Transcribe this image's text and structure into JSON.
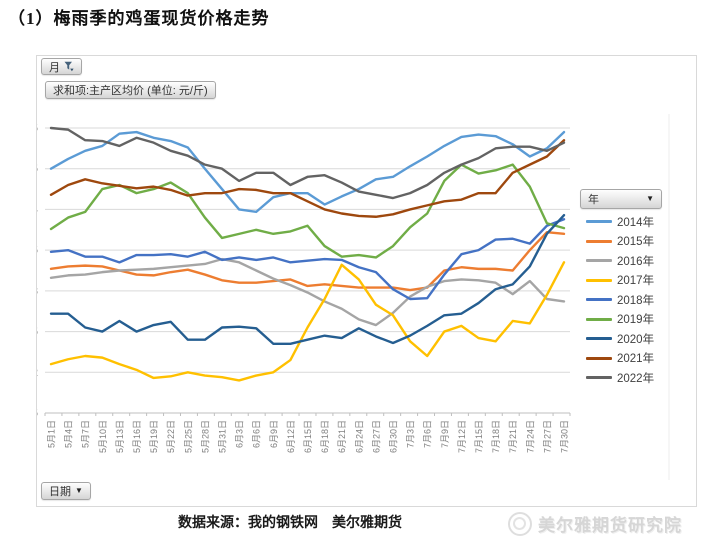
{
  "page": {
    "title": "（1）梅雨季的鸡蛋现货价格走势",
    "footer_source": "数据来源：我的钢铁网　美尔雅期货",
    "watermark": "美尔雅期货研究院"
  },
  "pivot_buttons": {
    "month_field": "月",
    "value_field": "求和项:主产区均价 (单位: 元/斤)",
    "year_field": "年",
    "date_field": "日期",
    "caret": "▼"
  },
  "chart_data": {
    "type": "line",
    "title": "求和项:主产区均价 (单位: 元/斤)",
    "xlabel": "日期",
    "ylabel": "元/斤",
    "ylim": [
      1.5,
      5
    ],
    "y_ticks": [
      1.5,
      2,
      2.5,
      3,
      3.5,
      4,
      4.5,
      5
    ],
    "grid": true,
    "legend_position": "right",
    "x_tick_labels": [
      "5月1日",
      "5月4日",
      "5月7日",
      "5月10日",
      "5月13日",
      "5月16日",
      "5月19日",
      "5月22日",
      "5月25日",
      "5月28日",
      "5月31日",
      "6月3日",
      "6月6日",
      "6月9日",
      "6月12日",
      "6月15日",
      "6月18日",
      "6月21日",
      "6月24日",
      "6月27日",
      "6月30日",
      "7月3日",
      "7月6日",
      "7月9日",
      "7月12日",
      "7月15日",
      "7月18日",
      "7月21日",
      "7月24日",
      "7月27日",
      "7月30日"
    ],
    "series": [
      {
        "name": "2014年",
        "color": "#5B9BD5",
        "values": [
          4.5,
          4.62,
          4.72,
          4.78,
          4.93,
          4.95,
          4.88,
          4.84,
          4.76,
          4.5,
          4.25,
          4.0,
          3.97,
          4.15,
          4.2,
          4.2,
          4.06,
          4.16,
          4.25,
          4.37,
          4.4,
          4.53,
          4.65,
          4.78,
          4.89,
          4.92,
          4.9,
          4.8,
          4.65,
          4.75,
          4.95
        ]
      },
      {
        "name": "2015年",
        "color": "#ED7D31",
        "values": [
          3.27,
          3.3,
          3.31,
          3.3,
          3.25,
          3.2,
          3.19,
          3.23,
          3.26,
          3.2,
          3.13,
          3.1,
          3.1,
          3.12,
          3.14,
          3.06,
          3.08,
          3.06,
          3.04,
          3.04,
          3.04,
          3.01,
          3.04,
          3.25,
          3.29,
          3.27,
          3.27,
          3.25,
          3.5,
          3.72,
          3.7
        ]
      },
      {
        "name": "2016年",
        "color": "#A5A5A5",
        "values": [
          3.16,
          3.19,
          3.2,
          3.23,
          3.25,
          3.26,
          3.27,
          3.29,
          3.31,
          3.33,
          3.39,
          3.35,
          3.25,
          3.15,
          3.07,
          2.98,
          2.87,
          2.78,
          2.65,
          2.58,
          2.73,
          2.93,
          3.05,
          3.12,
          3.14,
          3.13,
          3.1,
          2.96,
          3.12,
          2.9,
          2.87
        ]
      },
      {
        "name": "2017年",
        "color": "#FFC000",
        "values": [
          2.1,
          2.16,
          2.2,
          2.18,
          2.1,
          2.03,
          1.93,
          1.95,
          2.0,
          1.96,
          1.94,
          1.9,
          1.96,
          2.0,
          2.15,
          2.55,
          2.9,
          3.32,
          3.14,
          2.83,
          2.7,
          2.38,
          2.2,
          2.5,
          2.57,
          2.42,
          2.38,
          2.63,
          2.6,
          2.95,
          3.35
        ]
      },
      {
        "name": "2018年",
        "color": "#4472C4",
        "values": [
          3.48,
          3.5,
          3.42,
          3.42,
          3.35,
          3.44,
          3.44,
          3.45,
          3.42,
          3.48,
          3.38,
          3.41,
          3.38,
          3.41,
          3.35,
          3.37,
          3.39,
          3.38,
          3.29,
          3.23,
          3.02,
          2.9,
          2.91,
          3.2,
          3.45,
          3.5,
          3.63,
          3.64,
          3.58,
          3.8,
          3.88
        ]
      },
      {
        "name": "2019年",
        "color": "#70AD47",
        "values": [
          3.76,
          3.9,
          3.97,
          4.25,
          4.3,
          4.2,
          4.25,
          4.33,
          4.2,
          3.9,
          3.65,
          3.7,
          3.75,
          3.7,
          3.73,
          3.8,
          3.55,
          3.42,
          3.44,
          3.41,
          3.55,
          3.78,
          3.95,
          4.35,
          4.55,
          4.44,
          4.48,
          4.55,
          4.28,
          3.83,
          3.77
        ]
      },
      {
        "name": "2020年",
        "color": "#255E91",
        "values": [
          2.72,
          2.72,
          2.55,
          2.5,
          2.63,
          2.5,
          2.58,
          2.62,
          2.4,
          2.4,
          2.55,
          2.56,
          2.54,
          2.35,
          2.35,
          2.4,
          2.45,
          2.42,
          2.54,
          2.44,
          2.36,
          2.45,
          2.57,
          2.7,
          2.72,
          2.85,
          3.02,
          3.08,
          3.3,
          3.7,
          3.93
        ]
      },
      {
        "name": "2021年",
        "color": "#9E480E",
        "values": [
          4.18,
          4.3,
          4.37,
          4.32,
          4.29,
          4.26,
          4.28,
          4.24,
          4.17,
          4.2,
          4.2,
          4.25,
          4.24,
          4.2,
          4.2,
          4.1,
          4.0,
          3.95,
          3.92,
          3.91,
          3.94,
          4.0,
          4.05,
          4.1,
          4.12,
          4.2,
          4.2,
          4.45,
          4.55,
          4.65,
          4.85
        ]
      },
      {
        "name": "2022年",
        "color": "#636363",
        "values": [
          5.0,
          4.98,
          4.85,
          4.84,
          4.78,
          4.88,
          4.82,
          4.72,
          4.66,
          4.55,
          4.5,
          4.35,
          4.45,
          4.45,
          4.3,
          4.4,
          4.42,
          4.33,
          4.22,
          4.18,
          4.14,
          4.2,
          4.3,
          4.45,
          4.55,
          4.63,
          4.75,
          4.77,
          4.77,
          4.72,
          4.82
        ]
      }
    ]
  }
}
